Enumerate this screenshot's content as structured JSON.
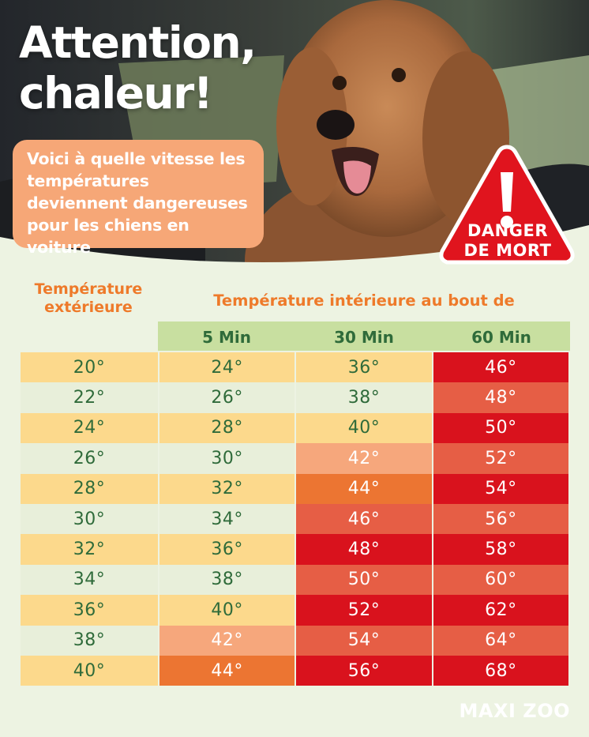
{
  "hero": {
    "title_line1": "Attention,",
    "title_line2": "chaleur!",
    "subtitle": "Voici à quelle vitesse les températures deviennent dangereuses pour les chiens en voiture",
    "danger_line1": "DANGER",
    "danger_line2": "DE MORT",
    "danger_color": "#e0141e"
  },
  "table": {
    "outside_label_line1": "Température",
    "outside_label_line2": "extérieure",
    "inside_label": "Température intérieure au bout de",
    "columns": [
      "5 Min",
      "30 Min",
      "60 Min"
    ],
    "rows": [
      {
        "outside": "20°",
        "min5": "24°",
        "min30": "36°",
        "min60": "46°"
      },
      {
        "outside": "22°",
        "min5": "26°",
        "min30": "38°",
        "min60": "48°"
      },
      {
        "outside": "24°",
        "min5": "28°",
        "min30": "40°",
        "min60": "50°"
      },
      {
        "outside": "26°",
        "min5": "30°",
        "min30": "42°",
        "min60": "52°"
      },
      {
        "outside": "28°",
        "min5": "32°",
        "min30": "44°",
        "min60": "54°"
      },
      {
        "outside": "30°",
        "min5": "34°",
        "min30": "46°",
        "min60": "56°"
      },
      {
        "outside": "32°",
        "min5": "36°",
        "min30": "48°",
        "min60": "58°"
      },
      {
        "outside": "34°",
        "min5": "38°",
        "min30": "50°",
        "min60": "60°"
      },
      {
        "outside": "36°",
        "min5": "40°",
        "min30": "52°",
        "min60": "62°"
      },
      {
        "outside": "38°",
        "min5": "42°",
        "min30": "54°",
        "min60": "64°"
      },
      {
        "outside": "40°",
        "min5": "44°",
        "min30": "56°",
        "min60": "68°"
      }
    ]
  },
  "brand": {
    "name": "MAXI ZOO"
  },
  "colors": {
    "yellow": "#fcd98c",
    "pale_green": "#e8efda",
    "peach": "#f6a77c",
    "orange": "#ec7532",
    "salmon": "#e65e45",
    "red": "#d9121d",
    "header_green": "#c8dfa0",
    "text_green": "#2f6b3a",
    "label_orange": "#ee7a2a"
  }
}
